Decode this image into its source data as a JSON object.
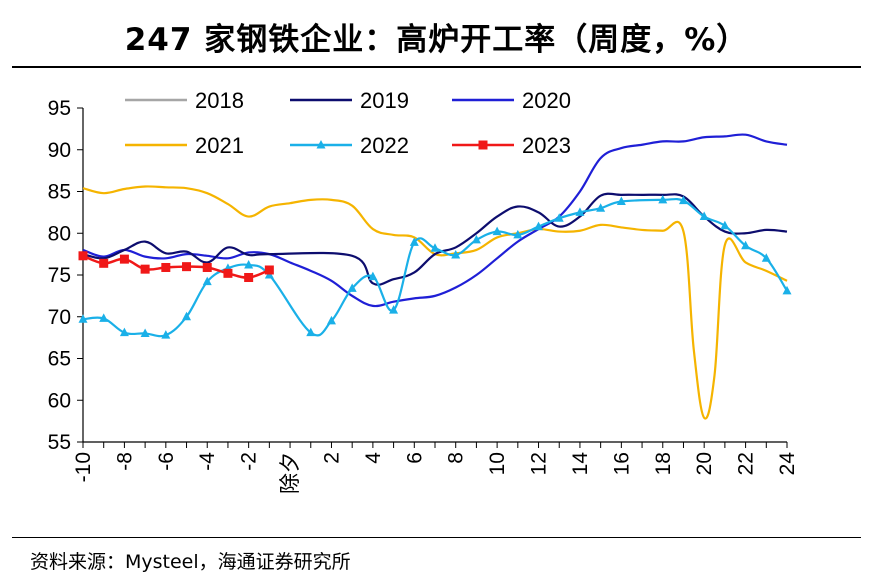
{
  "title": "247 家钢铁企业：高炉开工率（周度，%）",
  "source": "资料来源：Mysteel，海通证券研究所",
  "chart_data": {
    "type": "line",
    "xlabel": "",
    "ylabel": "",
    "ylim": [
      55,
      95
    ],
    "yticks": [
      "95",
      "90",
      "85",
      "80",
      "75",
      "70",
      "65",
      "60",
      "55"
    ],
    "xlim": [
      -10,
      24
    ],
    "xticks": [
      "-10",
      "-8",
      "-6",
      "-4",
      "-2",
      "除夕",
      "2",
      "4",
      "6",
      "8",
      "10",
      "12",
      "14",
      "16",
      "18",
      "20",
      "22",
      "24"
    ],
    "xtick_positions": [
      -10,
      -8,
      -6,
      -4,
      -2,
      0,
      2,
      4,
      6,
      8,
      10,
      12,
      14,
      16,
      18,
      20,
      22,
      24
    ],
    "legend": "top-left",
    "grid": false,
    "series": [
      {
        "name": "2018",
        "color": "#a6a6a6",
        "marker": "none",
        "x": [],
        "y": []
      },
      {
        "name": "2019",
        "color": "#0d0d6e",
        "marker": "none",
        "x": [
          -10,
          -9,
          -8,
          -7,
          -6,
          -5,
          -4,
          -3,
          -2,
          -1,
          3,
          4,
          5,
          6,
          7,
          8,
          9,
          10,
          11,
          12,
          13,
          14,
          15,
          16,
          17,
          18,
          19,
          20,
          21,
          22,
          23,
          24
        ],
        "y": [
          77.5,
          77.0,
          78.0,
          79.0,
          77.6,
          77.8,
          76.5,
          78.3,
          77.4,
          77.5,
          77.3,
          74.0,
          74.5,
          75.3,
          77.5,
          78.3,
          80.0,
          82.0,
          83.2,
          82.5,
          80.8,
          82.0,
          84.5,
          84.6,
          84.6,
          84.6,
          84.4,
          82.0,
          80.2,
          80.0,
          80.4,
          80.2
        ]
      },
      {
        "name": "2020",
        "color": "#1f1fd6",
        "marker": "none",
        "x": [
          -10,
          -9,
          -8,
          -7,
          -6,
          -5,
          -4,
          -3,
          -2,
          -1,
          0,
          1,
          2,
          3,
          4,
          5,
          6,
          7,
          8,
          9,
          10,
          11,
          12,
          13,
          14,
          15,
          16,
          17,
          18,
          19,
          20,
          21,
          22,
          23,
          24
        ],
        "y": [
          78.0,
          77.2,
          78.0,
          77.2,
          77.0,
          77.5,
          77.3,
          77.0,
          77.7,
          77.5,
          76.5,
          75.5,
          74.3,
          72.5,
          71.3,
          71.8,
          72.2,
          72.5,
          73.5,
          75.0,
          77.0,
          79.0,
          80.5,
          82.0,
          85.0,
          89.0,
          90.2,
          90.6,
          91.0,
          91.0,
          91.5,
          91.6,
          91.8,
          91.0,
          90.6
        ]
      },
      {
        "name": "2021",
        "color": "#f5b400",
        "marker": "none",
        "x": [
          -10,
          -9,
          -8,
          -7,
          -6,
          -5,
          -4,
          -3,
          -2,
          -1,
          0,
          1,
          2,
          3,
          4,
          5,
          6,
          7,
          8,
          9,
          10,
          11,
          12,
          13,
          14,
          15,
          16,
          17,
          18,
          19,
          19.5,
          20,
          20.5,
          21,
          22,
          23,
          24
        ],
        "y": [
          85.4,
          84.8,
          85.3,
          85.6,
          85.5,
          85.4,
          84.8,
          83.5,
          82.0,
          83.2,
          83.6,
          84.0,
          84.0,
          83.3,
          80.5,
          79.8,
          79.5,
          77.5,
          77.6,
          78.0,
          79.5,
          80.0,
          80.5,
          80.2,
          80.3,
          81.0,
          80.7,
          80.4,
          80.3,
          80.2,
          66.0,
          57.9,
          63.0,
          78.6,
          76.5,
          75.5,
          74.3
        ]
      },
      {
        "name": "2022",
        "color": "#1ab0e8",
        "marker": "triangle",
        "x": [
          -10,
          -9,
          -8,
          -7,
          -6,
          -5,
          -4,
          -3,
          -2,
          -1,
          1,
          2,
          3,
          4,
          5,
          6,
          7,
          8,
          9,
          10,
          11,
          12,
          13,
          14,
          15,
          16,
          18,
          19,
          20,
          21,
          22,
          23,
          24
        ],
        "y": [
          69.7,
          69.8,
          68.1,
          68.0,
          67.8,
          70.0,
          74.2,
          75.8,
          76.2,
          75.0,
          68.1,
          69.5,
          73.4,
          74.8,
          70.8,
          78.9,
          78.2,
          77.4,
          79.2,
          80.2,
          79.8,
          80.8,
          81.8,
          82.5,
          83.0,
          83.8,
          84.0,
          83.9,
          82.0,
          80.9,
          78.5,
          77.0,
          73.1
        ]
      },
      {
        "name": "2023",
        "color": "#f01818",
        "marker": "square",
        "x": [
          -10,
          -9,
          -8,
          -7,
          -6,
          -5,
          -4,
          -3,
          -2,
          -1
        ],
        "y": [
          77.3,
          76.4,
          76.9,
          75.7,
          75.9,
          76.0,
          75.9,
          75.2,
          74.7,
          75.6
        ]
      }
    ]
  }
}
